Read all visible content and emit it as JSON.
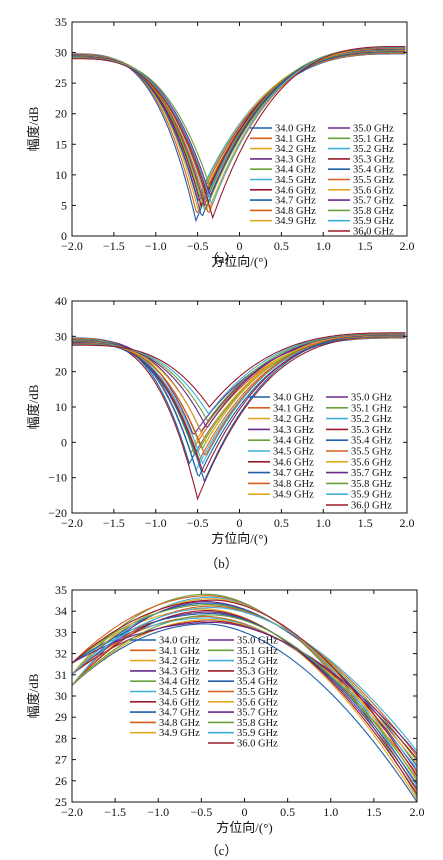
{
  "frequencies": [
    "34.0 GHz",
    "34.1 GHz",
    "34.2 GHz",
    "34.3 GHz",
    "34.4 GHz",
    "34.5 GHz",
    "34.6 GHz",
    "34.7 GHz",
    "34.8 GHz",
    "34.9 GHz",
    "35.0 GHz",
    "35.1 GHz",
    "35.2 GHz",
    "35.3 GHz",
    "35.4 GHz",
    "35.5 GHz",
    "35.6 GHz",
    "35.7 GHz",
    "35.8 GHz",
    "35.9 GHz",
    "36.0 GHz"
  ],
  "colors": [
    "#1f5fa8",
    "#d65f1e",
    "#e0a81f",
    "#6a2a8a",
    "#6aa03a",
    "#3fb0d8",
    "#9a1b2a",
    "#1f5fa8",
    "#d65f1e",
    "#e0a81f",
    "#6a2a8a",
    "#6aa03a",
    "#3fb0d8",
    "#9a1b2a",
    "#1f5fa8",
    "#d65f1e",
    "#e0a81f",
    "#6a2a8a",
    "#6aa03a",
    "#3fb0d8",
    "#9a1b2a"
  ],
  "chart_data": [
    {
      "type": "line",
      "caption": "（a）",
      "xlabel": "方位向/(°)",
      "ylabel": "幅度/dB",
      "xlim": [
        -2.0,
        2.0
      ],
      "ylim": [
        0,
        35
      ],
      "xticks": [
        "−2.0",
        "−1.5",
        "−1.0",
        "−0.5",
        "0",
        "0.5",
        "1.0",
        "1.5",
        "2.0"
      ],
      "yticks": [
        "0",
        "5",
        "10",
        "15",
        "20",
        "25",
        "30",
        "35"
      ],
      "legend_position": "right",
      "series_shape": {
        "left_edge_range": [
          29.0,
          29.8
        ],
        "right_edge_range": [
          29.8,
          31.0
        ],
        "null_positions": [
          -0.52,
          -0.51,
          -0.5,
          -0.49,
          -0.48,
          -0.47,
          -0.46,
          -0.45,
          -0.44,
          -0.43,
          -0.42,
          -0.41,
          -0.4,
          -0.39,
          -0.38,
          -0.37,
          -0.36,
          -0.35,
          -0.34,
          -0.33,
          -0.32
        ],
        "null_depths": [
          2.5,
          3.5,
          4.5,
          5.5,
          6.5,
          7.0,
          5.0,
          3.0,
          6.0,
          7.5,
          5.0,
          4.0,
          6.0,
          7.0,
          5.5,
          3.5,
          4.5,
          6.5,
          7.5,
          5.0,
          3.0
        ]
      }
    },
    {
      "type": "line",
      "caption": "（b）",
      "xlabel": "方位向/(°)",
      "ylabel": "幅度/dB",
      "xlim": [
        -2.0,
        2.0
      ],
      "ylim": [
        -20,
        40
      ],
      "xticks": [
        "−2.0",
        "−1.5",
        "−1.0",
        "−0.5",
        "0",
        "0.5",
        "1.0",
        "1.5",
        "2.0"
      ],
      "yticks": [
        "−20",
        "−10",
        "0",
        "10",
        "20",
        "30",
        "40"
      ],
      "legend_position": "right",
      "series_shape": {
        "left_edge_range": [
          27.5,
          29.5
        ],
        "right_edge_range": [
          29.5,
          31.0
        ],
        "null_positions": [
          -0.6,
          -0.58,
          -0.56,
          -0.55,
          -0.53,
          -0.52,
          -0.5,
          -0.49,
          -0.48,
          -0.47,
          -0.46,
          -0.45,
          -0.44,
          -0.43,
          -0.42,
          -0.41,
          -0.4,
          -0.39,
          -0.38,
          -0.37,
          -0.36
        ],
        "null_depths": [
          -6,
          -3,
          -1,
          2,
          -4,
          -8,
          -16,
          -10,
          -5,
          -1,
          3,
          -2,
          -6,
          -9,
          -11,
          -4,
          0,
          4,
          6,
          8,
          10
        ]
      }
    },
    {
      "type": "line",
      "caption": "（c）",
      "xlabel": "方位向/(°)",
      "ylabel": "幅度/dB",
      "xlim": [
        -2.0,
        2.0
      ],
      "ylim": [
        25,
        35
      ],
      "xticks": [
        "−2.0",
        "−1.5",
        "−1.0",
        "−0.5",
        "0",
        "0.5",
        "1.0",
        "1.5",
        "2.0"
      ],
      "yticks": [
        "25",
        "26",
        "27",
        "28",
        "29",
        "30",
        "31",
        "32",
        "33",
        "34",
        "35"
      ],
      "legend_position": "center-left",
      "series_shape": {
        "left_edge_range": [
          30.5,
          32.0
        ],
        "peak_range": [
          33.4,
          34.8
        ],
        "right_edge_range": [
          25.0,
          27.4
        ]
      }
    }
  ]
}
